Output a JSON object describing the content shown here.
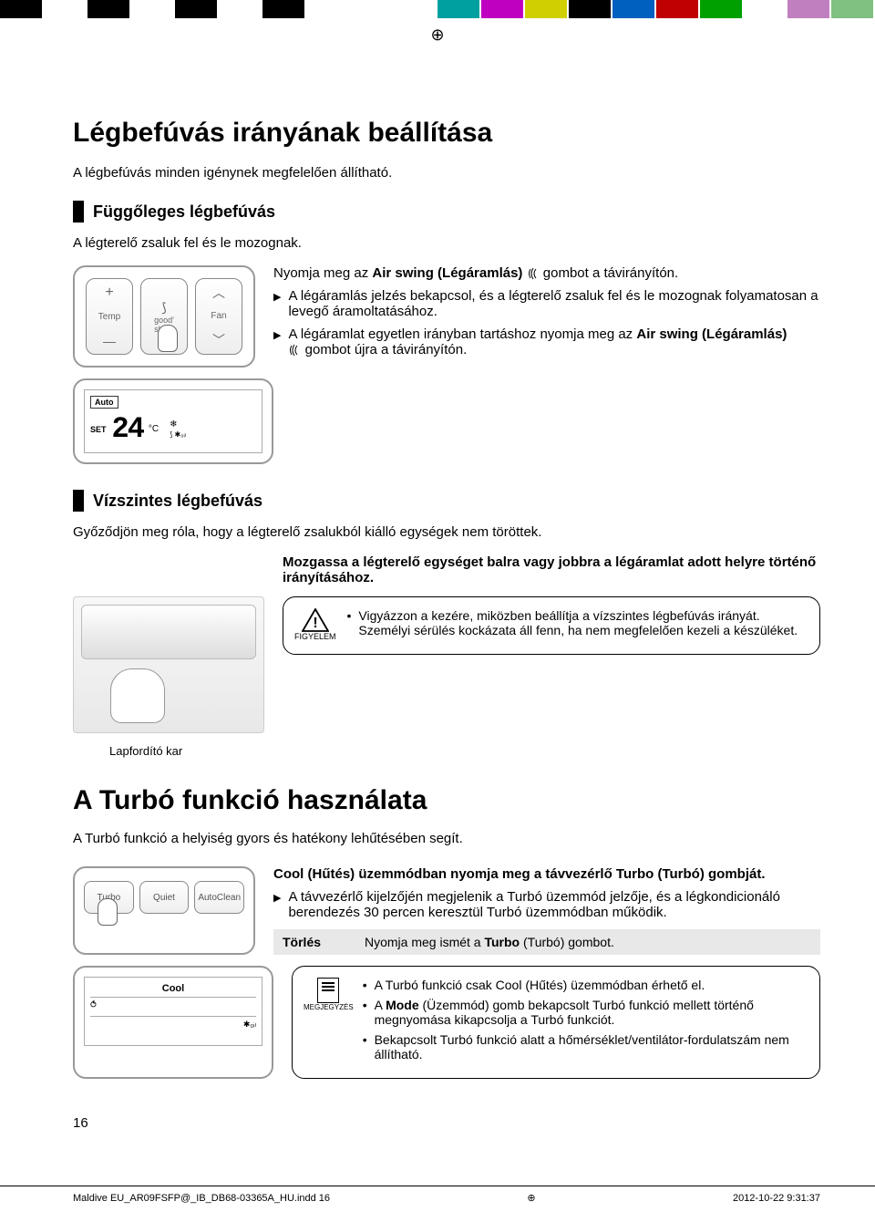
{
  "colorbar": [
    "#000000",
    "#ffffff",
    "#000000",
    "#ffffff",
    "#000000",
    "#ffffff",
    "#000000",
    "#ffffff",
    "#ffffff",
    "#ffffff",
    "#00a0a0",
    "#c000c0",
    "#d0d000",
    "#000000",
    "#0060c0",
    "#c00000",
    "#00a000",
    "#ffffff",
    "#c080c0",
    "#80c080"
  ],
  "h1": "Légbefúvás irányának beállítása",
  "intro1": "A légbefúvás minden igénynek megfelelően állítható.",
  "sec1": "Függőleges légbefúvás",
  "sub1": "A légterelő zsaluk fel és le mozognak.",
  "remote": {
    "temp": "Temp",
    "fan": "Fan",
    "good": "good'",
    "sleep": "sleep",
    "plus": "+",
    "minus": "—",
    "up": "︿",
    "down": "﹀"
  },
  "inst1a": "Nyomja meg az ",
  "inst1b": "Air swing (Légáramlás)",
  "inst1c": " gombot a távirányítón.",
  "b1": "A légáramlás jelzés bekapcsol, és a légterelő zsaluk fel és le mozognak folyamatosan a levegő áramoltatásához.",
  "b2a": "A légáramlat egyetlen irányban tartáshoz nyomja meg az ",
  "b2b": "Air swing (Légáramlás)",
  "b2c": " gombot újra a távirányítón.",
  "lcd": {
    "auto": "Auto",
    "set": "SET",
    "num": "24",
    "c": "°C"
  },
  "sec2": "Vízszintes légbefúvás",
  "sub2": "Győződjön meg róla, hogy a légterelő zsalukból kiálló egységek nem töröttek.",
  "inst2": "Mozgassa a légterelő egységet balra vagy jobbra a légáramlat adott helyre történő irányításához.",
  "warn_label": "FIGYELEM",
  "warn1": "Vigyázzon a kezére, miközben beállítja a vízszintes légbefúvás irányát.",
  "warn2": "Személyi sérülés kockázata áll fenn, ha nem megfelelően kezeli a készüléket.",
  "lever": "Lapfordító kar",
  "h2": "A Turbó funkció használata",
  "intro2": "A Turbó funkció a helyiség gyors és hatékony lehűtésében segít.",
  "remote2": {
    "turbo": "Turbo",
    "quiet": "Quiet",
    "auto": "Auto",
    "clean": "Clean"
  },
  "inst3a": "Cool (Hűtés) üzemmódban nyomja meg a távvezérlő ",
  "inst3b": "Turbo",
  "inst3c": " (Turbó) gombját.",
  "b3": "A távvezérlő kijelzőjén megjelenik a Turbó üzemmód jelzője, és a légkondicionáló berendezés 30 percen keresztül Turbó üzemmódban működik.",
  "cancel_l": "Törlés",
  "cancel_r_a": "Nyomja meg ismét a ",
  "cancel_r_b": "Turbo",
  "cancel_r_c": " (Turbó) gombot.",
  "lcd2": {
    "cool": "Cool"
  },
  "note_label": "MEGJEGYZÉS",
  "n1": "A Turbó funkció csak Cool (Hűtés) üzemmódban érhető el.",
  "n2a": "A ",
  "n2b": "Mode",
  "n2c": " (Üzemmód) gomb bekapcsolt Turbó funkció mellett történő megnyomása kikapcsolja a Turbó funkciót.",
  "n3": "Bekapcsolt Turbó funkció alatt a hőmérséklet/ventilátor-fordulatszám nem állítható.",
  "pnum": "16",
  "footer_l": "Maldive EU_AR09FSFP@_IB_DB68-03365A_HU.indd   16",
  "footer_r": "2012-10-22   9:31:37"
}
